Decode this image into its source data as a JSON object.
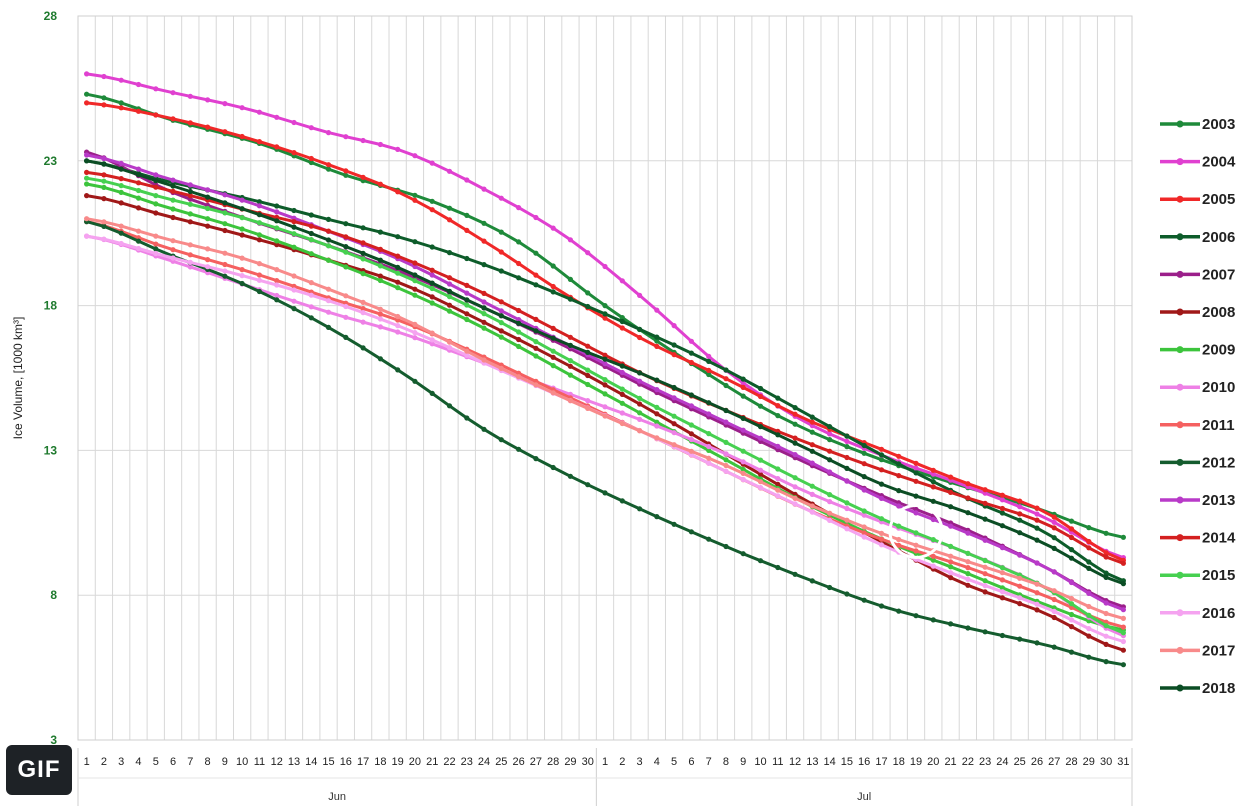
{
  "gif_badge": "GIF",
  "chart_data": {
    "type": "line",
    "ylabel": "Ice Volume, [1000 km³]",
    "ylim": [
      3,
      28
    ],
    "yticks": [
      3,
      8,
      13,
      18,
      23,
      28
    ],
    "grid": true,
    "legend_position": "right",
    "months": [
      "Jun",
      "Jul"
    ],
    "x_labels": [
      "1",
      "2",
      "3",
      "4",
      "5",
      "6",
      "7",
      "8",
      "9",
      "10",
      "11",
      "12",
      "13",
      "14",
      "15",
      "16",
      "17",
      "18",
      "19",
      "20",
      "21",
      "22",
      "23",
      "24",
      "25",
      "26",
      "27",
      "28",
      "29",
      "30",
      "1",
      "2",
      "3",
      "4",
      "5",
      "6",
      "7",
      "8",
      "9",
      "10",
      "11",
      "12",
      "13",
      "14",
      "15",
      "16",
      "17",
      "18",
      "19",
      "20",
      "21",
      "22",
      "23",
      "24",
      "25",
      "26",
      "27",
      "28",
      "29",
      "30",
      "31"
    ],
    "annotation": {
      "type": "circle",
      "x_index": 48,
      "y": 10.2
    },
    "series": [
      {
        "name": "2003",
        "color": "#1e8a3a",
        "values": [
          25.3,
          24.4,
          23.6,
          22.5,
          21.6,
          20.2,
          18.0,
          16.0,
          14.2,
          12.9,
          11.9,
          11.0,
          10.0
        ]
      },
      {
        "name": "2004",
        "color": "#e040d0",
        "values": [
          26.0,
          25.4,
          24.8,
          24.0,
          23.3,
          22.0,
          20.4,
          18.2,
          15.8,
          14.0,
          12.8,
          11.8,
          10.7,
          9.3
        ]
      },
      {
        "name": "2005",
        "color": "#f02828",
        "values": [
          25.0,
          24.5,
          23.8,
          22.9,
          21.8,
          20.2,
          18.4,
          16.8,
          15.5,
          14.1,
          13.0,
          11.9,
          10.9,
          9.2
        ]
      },
      {
        "name": "2006",
        "color": "#0d5c2a",
        "values": [
          23.0,
          22.3,
          21.7,
          21.0,
          20.3,
          19.4,
          18.3,
          17.1,
          15.8,
          14.3,
          12.8,
          11.4,
          10.2,
          8.5
        ]
      },
      {
        "name": "2007",
        "color": "#9b1f8a",
        "values": [
          23.3,
          22.0,
          21.0,
          20.1,
          19.1,
          17.9,
          16.6,
          15.2,
          13.9,
          12.6,
          11.4,
          10.3,
          9.0,
          7.6
        ]
      },
      {
        "name": "2008",
        "color": "#a01818",
        "values": [
          21.8,
          21.1,
          20.4,
          19.6,
          18.7,
          17.4,
          16.0,
          14.5,
          12.9,
          11.3,
          9.8,
          8.4,
          7.4,
          6.1
        ]
      },
      {
        "name": "2009",
        "color": "#3cc43c",
        "values": [
          22.2,
          21.4,
          20.6,
          19.6,
          18.5,
          17.2,
          15.7,
          14.2,
          12.7,
          11.2,
          9.9,
          8.8,
          7.7,
          6.8
        ]
      },
      {
        "name": "2010",
        "color": "#ee80e6",
        "values": [
          20.4,
          19.6,
          18.7,
          17.8,
          17.0,
          16.0,
          15.0,
          14.0,
          12.9,
          11.6,
          10.5,
          9.5,
          8.3,
          6.6
        ]
      },
      {
        "name": "2011",
        "color": "#f56060",
        "values": [
          20.9,
          20.0,
          19.2,
          18.3,
          17.4,
          16.2,
          14.9,
          13.6,
          12.3,
          11.0,
          9.9,
          9.0,
          8.0,
          6.9
        ]
      },
      {
        "name": "2012",
        "color": "#145c2e",
        "values": [
          20.9,
          19.8,
          18.7,
          17.3,
          15.6,
          13.7,
          12.2,
          10.9,
          9.7,
          8.6,
          7.6,
          6.9,
          6.3,
          5.6
        ]
      },
      {
        "name": "2013",
        "color": "#b83ac8",
        "values": [
          23.2,
          22.4,
          21.6,
          20.6,
          19.5,
          18.1,
          16.7,
          15.3,
          14.0,
          12.7,
          11.3,
          10.2,
          9.0,
          7.5
        ]
      },
      {
        "name": "2014",
        "color": "#d42020",
        "values": [
          22.6,
          22.0,
          21.3,
          20.6,
          19.6,
          18.4,
          17.0,
          15.6,
          14.4,
          13.3,
          12.3,
          11.4,
          10.5,
          9.1
        ]
      },
      {
        "name": "2015",
        "color": "#46d050",
        "values": [
          22.4,
          21.7,
          21.0,
          20.1,
          19.0,
          17.7,
          16.2,
          14.7,
          13.3,
          11.9,
          10.6,
          9.5,
          8.3,
          6.7
        ]
      },
      {
        "name": "2016",
        "color": "#f5a3f0",
        "values": [
          20.4,
          19.7,
          19.0,
          18.2,
          17.2,
          16.0,
          14.8,
          13.6,
          12.3,
          11.0,
          9.7,
          8.6,
          7.6,
          6.4
        ]
      },
      {
        "name": "2017",
        "color": "#f88a8a",
        "values": [
          21.0,
          20.3,
          19.6,
          18.6,
          17.5,
          16.1,
          14.8,
          13.6,
          12.5,
          11.2,
          10.1,
          9.2,
          8.3,
          7.2
        ]
      },
      {
        "name": "2018",
        "color": "#0b4d24",
        "values": [
          23.0,
          22.2,
          21.3,
          20.3,
          19.2,
          17.9,
          16.7,
          15.6,
          14.4,
          13.1,
          11.8,
          10.9,
          9.8,
          8.4
        ]
      }
    ]
  }
}
